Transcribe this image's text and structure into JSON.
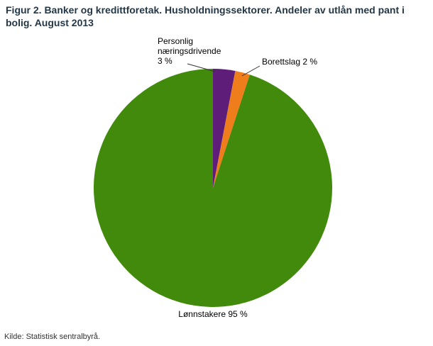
{
  "figure": {
    "title": "Figur 2. Banker og kredittforetak. Husholdningssektorer. Andeler av utlån med pant i bolig. August 2013",
    "source": "Kilde: Statistisk sentralbyrå."
  },
  "chart_data": {
    "type": "pie",
    "title": "Figur 2. Banker og kredittforetak. Husholdningssektorer. Andeler av utlån med pant i bolig. August 2013",
    "unit": "percent",
    "total": 100,
    "start_angle_deg": 0,
    "direction": "clockwise",
    "legend_position": "none",
    "slices": [
      {
        "name": "personlig-naeringsdrivende",
        "label": "Personlig næringsdrivende",
        "value": 3,
        "color": "#5f1d7a"
      },
      {
        "name": "borettslag",
        "label": "Borettslag",
        "value": 2,
        "color": "#ef7d1c"
      },
      {
        "name": "loennstakere",
        "label": "Lønnstakere",
        "value": 95,
        "color": "#418a0c"
      }
    ],
    "callouts": {
      "personlig": "Personlig\nnæringsdrivende\n3 %",
      "borettslag": "Borettslag 2 %",
      "loennstakere": "Lønnstakere 95 %"
    }
  }
}
